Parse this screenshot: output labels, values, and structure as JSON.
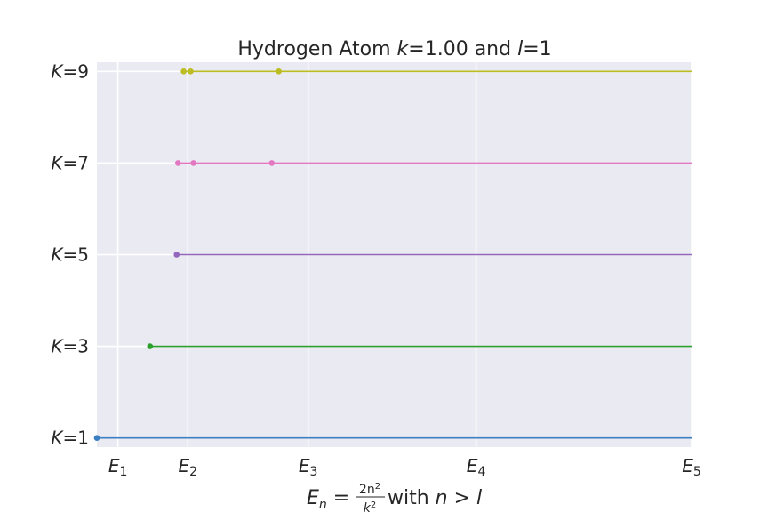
{
  "chart_data": {
    "type": "scatter",
    "title_parts": {
      "before": "Hydrogen Atom ",
      "k_sym": "k",
      "k_val": "=1.00 and ",
      "l_sym": "l",
      "l_val": "=1"
    },
    "xlabel_parts": {
      "lhs": "E",
      "sub": "n",
      "eq": " = ",
      "num": "2n",
      "num_sup": "2",
      "den": "k",
      "den_sup": "2",
      "tail": " with ",
      "n": "n",
      "gt": " > ",
      "l": "l"
    },
    "xlim": [
      0.75,
      5.0
    ],
    "ylim": [
      0.8,
      9.2
    ],
    "x_ticks": [
      {
        "value": 0.9,
        "E": "E",
        "sub": "1"
      },
      {
        "value": 1.4,
        "E": "E",
        "sub": "2"
      },
      {
        "value": 2.26,
        "E": "E",
        "sub": "3"
      },
      {
        "value": 3.46,
        "E": "E",
        "sub": "4"
      },
      {
        "value": 5.0,
        "E": "E",
        "sub": "5"
      }
    ],
    "y_ticks": [
      {
        "value": 1,
        "sym": "K",
        "rest": "=1"
      },
      {
        "value": 3,
        "sym": "K",
        "rest": "=3"
      },
      {
        "value": 5,
        "sym": "K",
        "rest": "=5"
      },
      {
        "value": 7,
        "sym": "K",
        "rest": "=7"
      },
      {
        "value": 9,
        "sym": "K",
        "rest": "=9"
      }
    ],
    "grid": true,
    "series": [
      {
        "K": 1,
        "color": "#3a7fc1",
        "points": [
          0.75
        ],
        "line_from": 0.75,
        "line_to": 5.0
      },
      {
        "K": 3,
        "color": "#2ca02c",
        "points": [
          1.13
        ],
        "line_from": 1.13,
        "line_to": 5.0
      },
      {
        "K": 5,
        "color": "#9467bd",
        "points": [
          1.32
        ],
        "line_from": 1.32,
        "line_to": 5.0
      },
      {
        "K": 7,
        "color": "#e377c2",
        "points": [
          1.33,
          1.44,
          2.0
        ],
        "line_from": 1.33,
        "line_to": 5.0
      },
      {
        "K": 9,
        "color": "#bcbd22",
        "points": [
          1.37,
          1.42,
          2.05
        ],
        "line_from": 1.37,
        "line_to": 5.0
      }
    ]
  }
}
